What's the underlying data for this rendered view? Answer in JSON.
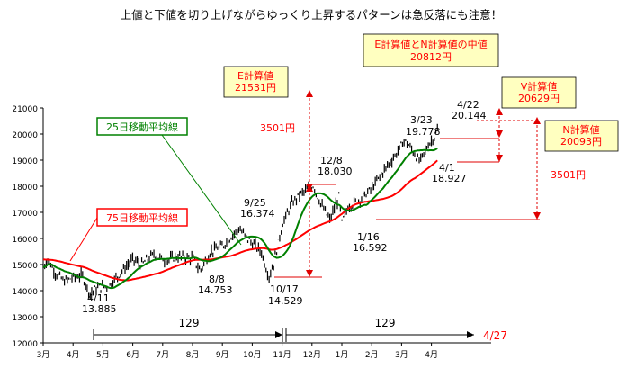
{
  "chart_data": {
    "type": "line",
    "title": "上値と下値を切り上げながらゆっくり上昇するパターンは急反落にも注意！",
    "y_ticks": [
      "21000",
      "20000",
      "19000",
      "18000",
      "17000",
      "16000",
      "15000",
      "14000",
      "13000",
      "12000"
    ],
    "ylim": [
      12000,
      21000
    ],
    "x_ticks": [
      "3月",
      "4月",
      "5月",
      "6月",
      "7月",
      "8月",
      "9月",
      "10月",
      "11月",
      "12月",
      "1月",
      "2月",
      "3月",
      "4月"
    ],
    "series": [
      {
        "name": "25日移動平均線",
        "color": "#008000"
      },
      {
        "name": "75日移動平均線",
        "color": "#ff0000"
      }
    ],
    "price_color": "#000000",
    "grid": false,
    "callouts": [
      {
        "label": "25日移動平均線",
        "color": "#008000"
      },
      {
        "label": "75日移動平均線",
        "color": "#ff0000"
      }
    ],
    "point_labels": [
      {
        "date": "4/11",
        "value": "13.885"
      },
      {
        "date": "8/8",
        "value": "14.753"
      },
      {
        "date": "9/25",
        "value": "16.374"
      },
      {
        "date": "10/17",
        "value": "14.529"
      },
      {
        "date": "12/8",
        "value": "18.030"
      },
      {
        "date": "1/16",
        "value": "16.592"
      },
      {
        "date": "3/23",
        "value": "19.778"
      },
      {
        "date": "4/1",
        "value": "18.927"
      },
      {
        "date": "4/22",
        "value": "20.144"
      }
    ],
    "boxes": [
      {
        "line1": "E計算値",
        "line2": "21531円"
      },
      {
        "line1": "E計算値とN計算値の中値",
        "line2": "20812円"
      },
      {
        "line1": "V計算値",
        "line2": "20629円"
      },
      {
        "line1": "N計算値",
        "line2": "20093円"
      }
    ],
    "annotations": {
      "range_e": "3501円",
      "range_n": "3501円",
      "span_1": "129",
      "span_2": "129",
      "end_date": "4/27"
    },
    "annotation_color": "#e00000",
    "box_fill": "#ffffc0"
  }
}
